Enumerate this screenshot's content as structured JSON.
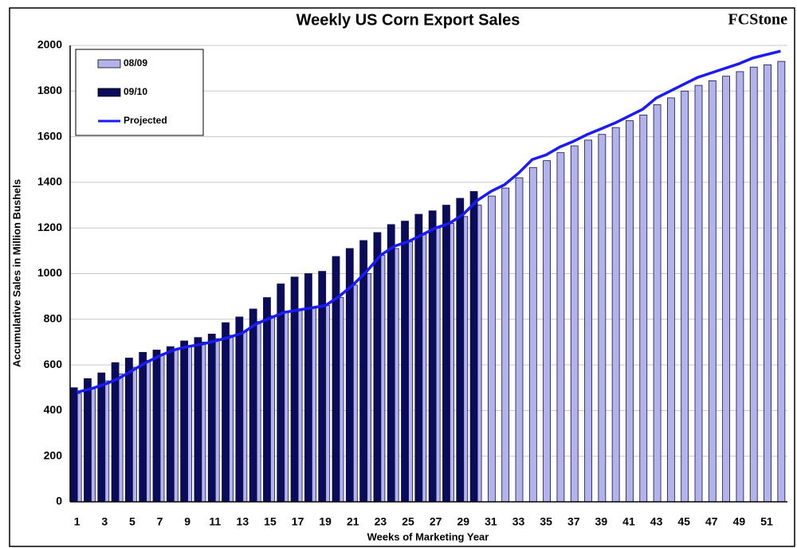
{
  "chart_data": {
    "type": "bar",
    "title": "Weekly US Corn Export Sales",
    "logo": "FCStone",
    "x_label": "Weeks of Marketing Year",
    "y_label": "Accumulative Sales in Million Bushels",
    "categories": [
      1,
      null,
      3,
      null,
      5,
      null,
      7,
      null,
      9,
      null,
      11,
      null,
      13,
      null,
      15,
      null,
      17,
      null,
      19,
      null,
      21,
      null,
      23,
      null,
      25,
      null,
      27,
      null,
      29,
      null,
      31,
      null,
      33,
      null,
      35,
      null,
      37,
      null,
      39,
      null,
      41,
      null,
      43,
      null,
      45,
      null,
      47,
      null,
      49,
      null,
      51,
      null
    ],
    "series": [
      {
        "name": "08/09",
        "type": "bar",
        "color": "#b3b3ec",
        "values": [
          475,
          500,
          530,
          560,
          590,
          620,
          645,
          665,
          680,
          700,
          715,
          730,
          745,
          790,
          815,
          835,
          845,
          850,
          860,
          895,
          950,
          1000,
          1080,
          1110,
          1140,
          1170,
          1200,
          1220,
          1250,
          1300,
          1340,
          1375,
          1420,
          1465,
          1495,
          1530,
          1560,
          1585,
          1610,
          1640,
          1670,
          1695,
          1740,
          1770,
          1800,
          1825,
          1845,
          1865,
          1885,
          1905,
          1915,
          1930
        ]
      },
      {
        "name": "09/10",
        "type": "bar",
        "color": "#0b0b5c",
        "values": [
          500,
          540,
          565,
          610,
          630,
          655,
          665,
          680,
          705,
          720,
          735,
          785,
          810,
          845,
          895,
          955,
          985,
          1000,
          1010,
          1075,
          1110,
          1145,
          1180,
          1215,
          1230,
          1260,
          1275,
          1300,
          1330,
          1360,
          null,
          null,
          null,
          null,
          null,
          null,
          null,
          null,
          null,
          null,
          null,
          null,
          null,
          null,
          null,
          null,
          null,
          null,
          null,
          null,
          null,
          null
        ]
      },
      {
        "name": "Projected",
        "type": "line",
        "color": "#1a1aff",
        "values": [
          480,
          495,
          515,
          540,
          575,
          610,
          640,
          665,
          680,
          690,
          705,
          720,
          740,
          780,
          805,
          830,
          840,
          850,
          860,
          900,
          950,
          1010,
          1080,
          1120,
          1140,
          1170,
          1200,
          1220,
          1260,
          1320,
          1360,
          1390,
          1440,
          1500,
          1520,
          1555,
          1580,
          1610,
          1635,
          1660,
          1690,
          1720,
          1770,
          1800,
          1830,
          1860,
          1880,
          1900,
          1920,
          1945,
          1960,
          1975
        ]
      }
    ],
    "ylim": [
      0,
      2000
    ],
    "yticks": [
      0,
      200,
      400,
      600,
      800,
      1000,
      1200,
      1400,
      1600,
      1800,
      2000
    ],
    "grid": true,
    "legend": "top-left"
  }
}
